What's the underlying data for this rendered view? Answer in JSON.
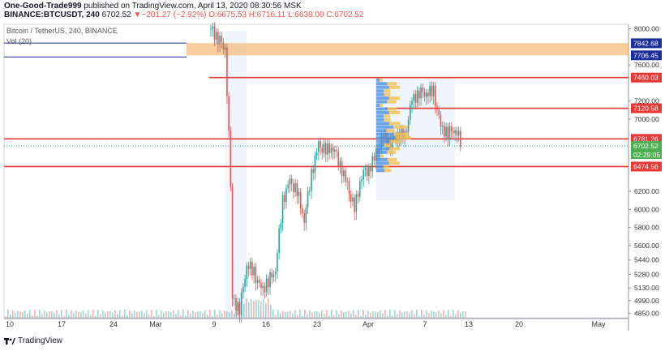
{
  "header": {
    "author": "One-Good-Trade999",
    "published_text": " published on TradingView.com, April 13, 2020 08:30:56 MSK",
    "symbol": "BINANCE:BTCUSDT, 240",
    "last": "6702.52",
    "change": "−201.27 (−2.92%)",
    "O": "O:6675.53",
    "H": "H:6716.11",
    "L": "L:6638.00",
    "C": "C:6702.52"
  },
  "legend": {
    "title": "Bitcoin / TetherUS, 240, BINANCE",
    "vol": "Vol (20)"
  },
  "footer": {
    "brand": "TradingView"
  },
  "colors": {
    "up": "#26a69a",
    "down": "#ef5350",
    "line": "#e53935",
    "zone": "#f5b36b",
    "blue": "#1b2e9b"
  },
  "chart_data": {
    "type": "candlestick",
    "ylim": [
      4800,
      8050
    ],
    "y_ticks": [
      "8000.00",
      "7840.00",
      "7706.45",
      "7600.00",
      "7460.03",
      "7200.00",
      "7120.58",
      "7000.00",
      "6781.26",
      "6702.52",
      "6474.56",
      "6200.00",
      "6000.00",
      "5800.00",
      "5600.00",
      "5440.00",
      "5280.00",
      "5130.00",
      "4990.00",
      "4850.00"
    ],
    "x_ticks": [
      "10",
      "17",
      "24",
      "Mar",
      "9",
      "16",
      "23",
      "Apr",
      "7",
      "13",
      "20",
      "May"
    ],
    "levels": [
      {
        "label": "7460.03",
        "value": 7460.03
      },
      {
        "label": "7120.58",
        "value": 7120.58
      },
      {
        "label": "6781.26",
        "value": 6781.26
      },
      {
        "label": "6474.56",
        "value": 6474.56
      }
    ],
    "zone": {
      "top_label": "7842.68",
      "top": 7842.68,
      "bottom_label": "7706.45",
      "bottom": 7706.45
    },
    "current": {
      "price": "6702.52",
      "countdown": "02:29:05"
    },
    "series": [
      {
        "name": "price",
        "points": [
          [
            "Mar 9",
            8000
          ],
          [
            "Mar 10",
            7900
          ],
          [
            "Mar 11",
            7800
          ],
          [
            "Mar 12",
            5800
          ],
          [
            "Mar 12",
            5000
          ],
          [
            "Mar 13",
            4900
          ],
          [
            "Mar 14",
            5400
          ],
          [
            "Mar 15",
            5300
          ],
          [
            "Mar 16",
            5100
          ],
          [
            "Mar 17",
            5200
          ],
          [
            "Mar 18",
            5350
          ],
          [
            "Mar 19",
            6100
          ],
          [
            "Mar 20",
            6300
          ],
          [
            "Mar 21",
            6200
          ],
          [
            "Mar 22",
            5900
          ],
          [
            "Mar 23",
            6400
          ],
          [
            "Mar 24",
            6700
          ],
          [
            "Mar 25",
            6650
          ],
          [
            "Mar 26",
            6700
          ],
          [
            "Mar 27",
            6500
          ],
          [
            "Mar 28",
            6250
          ],
          [
            "Mar 29",
            6000
          ],
          [
            "Mar 30",
            6400
          ],
          [
            "Mar 31",
            6450
          ],
          [
            "Apr 1",
            6600
          ],
          [
            "Apr 2",
            6800
          ],
          [
            "Apr 3",
            6750
          ],
          [
            "Apr 4",
            6850
          ],
          [
            "Apr 5",
            6800
          ],
          [
            "Apr 6",
            7200
          ],
          [
            "Apr 7",
            7300
          ],
          [
            "Apr 8",
            7300
          ],
          [
            "Apr 9",
            7300
          ],
          [
            "Apr 10",
            6900
          ],
          [
            "Apr 11",
            6850
          ],
          [
            "Apr 12",
            6900
          ],
          [
            "Apr 13",
            6702.52
          ]
        ]
      }
    ]
  }
}
